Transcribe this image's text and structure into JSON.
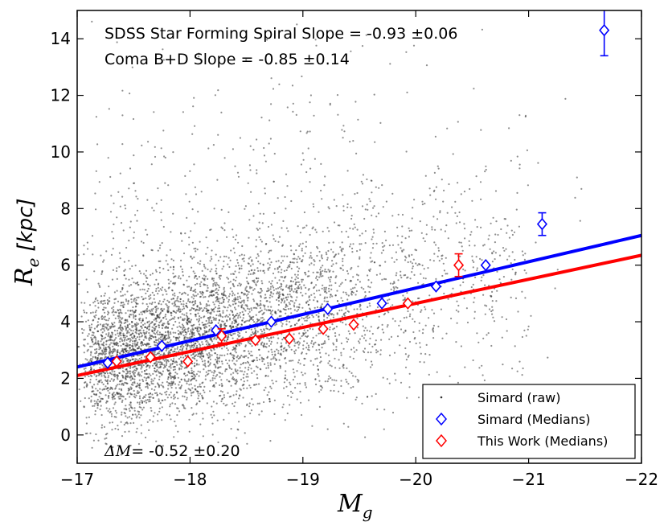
{
  "chart_data": {
    "type": "scatter",
    "xlabel": "M",
    "xlabel_sub": "g",
    "ylabel": "R",
    "ylabel_sub": "e",
    "ylabel_unit": "[kpc]",
    "xlim": [
      -17,
      -22
    ],
    "ylim": [
      -1,
      15
    ],
    "x_ticks": [
      -17,
      -18,
      -19,
      -20,
      -21,
      -22
    ],
    "x_tick_labels": [
      "−17",
      "−18",
      "−19",
      "−20",
      "−21",
      "−22"
    ],
    "y_ticks": [
      0,
      2,
      4,
      6,
      8,
      10,
      12,
      14
    ],
    "y_tick_labels": [
      "0",
      "2",
      "4",
      "6",
      "8",
      "10",
      "12",
      "14"
    ],
    "annotations": [
      "SDSS Star Forming Spiral Slope = -0.93 ±0.06",
      "Coma B+D Slope = -0.85 ±0.14"
    ],
    "delta_annotation": {
      "symbol": "ΔM",
      "text": "= -0.52 ±0.20"
    },
    "legend_position": "lower-right",
    "legend": [
      "Simard (raw)",
      "Simard (Medians)",
      "This Work (Medians)"
    ],
    "colors": {
      "raw": "#333333",
      "simard": "#0000ff",
      "this_work": "#ff0000",
      "blue_fit": "#0000ff",
      "red_fit": "#ff0000"
    },
    "series": [
      {
        "name": "Simard (Medians)",
        "marker": "diamond",
        "x": [
          -17.27,
          -17.75,
          -18.23,
          -18.72,
          -19.22,
          -19.7,
          -20.18,
          -20.62,
          -21.12,
          -21.67
        ],
        "y": [
          2.55,
          3.15,
          3.7,
          4.0,
          4.45,
          4.65,
          5.25,
          6.0,
          7.45,
          14.3
        ],
        "yerr": [
          0.1,
          0.1,
          0.1,
          0.1,
          0.1,
          0.1,
          0.12,
          0.15,
          0.4,
          0.9
        ]
      },
      {
        "name": "This Work (Medians)",
        "marker": "diamond",
        "x": [
          -17.35,
          -17.65,
          -17.98,
          -18.28,
          -18.58,
          -18.88,
          -19.18,
          -19.45,
          -19.93,
          -20.38
        ],
        "y": [
          2.6,
          2.75,
          2.6,
          3.5,
          3.35,
          3.4,
          3.75,
          3.9,
          4.65,
          6.0
        ],
        "yerr": [
          0.1,
          0.1,
          0.15,
          0.25,
          0.1,
          0.15,
          0.1,
          0.1,
          0.1,
          0.4
        ]
      }
    ],
    "fit_lines": [
      {
        "name": "SDSS Star Forming Spiral fit",
        "color": "blue",
        "x": [
          -17,
          -22
        ],
        "y": [
          2.4,
          7.05
        ]
      },
      {
        "name": "Coma B+D fit",
        "color": "red",
        "x": [
          -17,
          -22
        ],
        "y": [
          2.1,
          6.35
        ]
      }
    ],
    "raw_scatter": {
      "name": "Simard (raw)",
      "count": 14000,
      "x_center": -18.2,
      "y_center": 3.6
    }
  }
}
